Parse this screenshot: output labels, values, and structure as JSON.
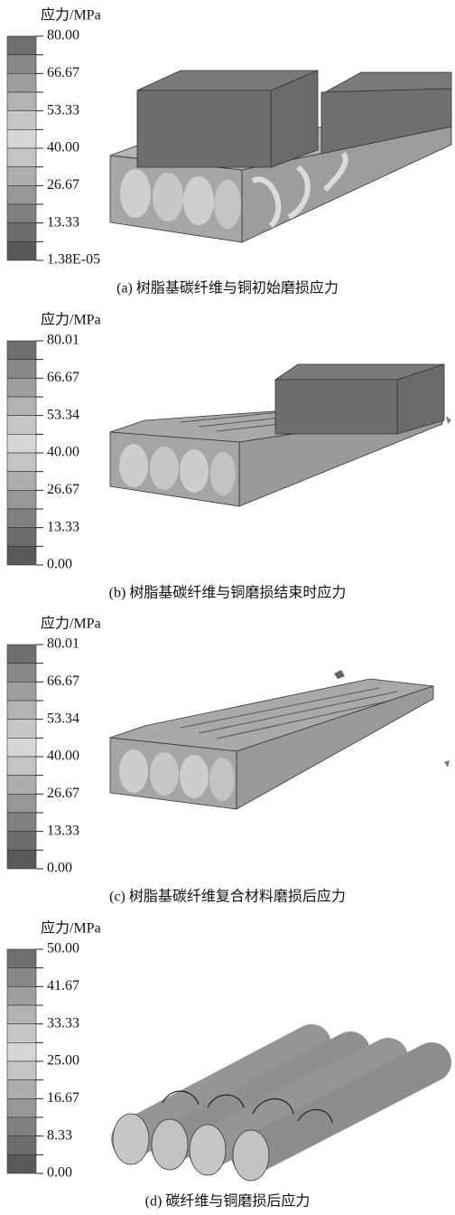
{
  "panels": [
    {
      "legend_title": "应力/MPa",
      "ticks": [
        "80.00",
        "66.67",
        "53.33",
        "40.00",
        "26.67",
        "13.33",
        "1.38E-05"
      ],
      "caption": "(a) 树脂基碳纤维与铜初始磨损应力"
    },
    {
      "legend_title": "应力/MPa",
      "ticks": [
        "80.01",
        "66.67",
        "53.34",
        "40.00",
        "26.67",
        "13.33",
        "0.00"
      ],
      "caption": "(b) 树脂基碳纤维与铜磨损结束时应力"
    },
    {
      "legend_title": "应力/MPa",
      "ticks": [
        "80.01",
        "66.67",
        "53.34",
        "40.00",
        "26.67",
        "13.33",
        "0.00"
      ],
      "caption": "(c) 树脂基碳纤维复合材料磨损后应力"
    },
    {
      "legend_title": "应力/MPa",
      "ticks": [
        "50.00",
        "41.67",
        "33.33",
        "25.00",
        "16.67",
        "8.33",
        "0.00"
      ],
      "caption": "(d) 碳纤维与铜磨损后应力"
    }
  ]
}
